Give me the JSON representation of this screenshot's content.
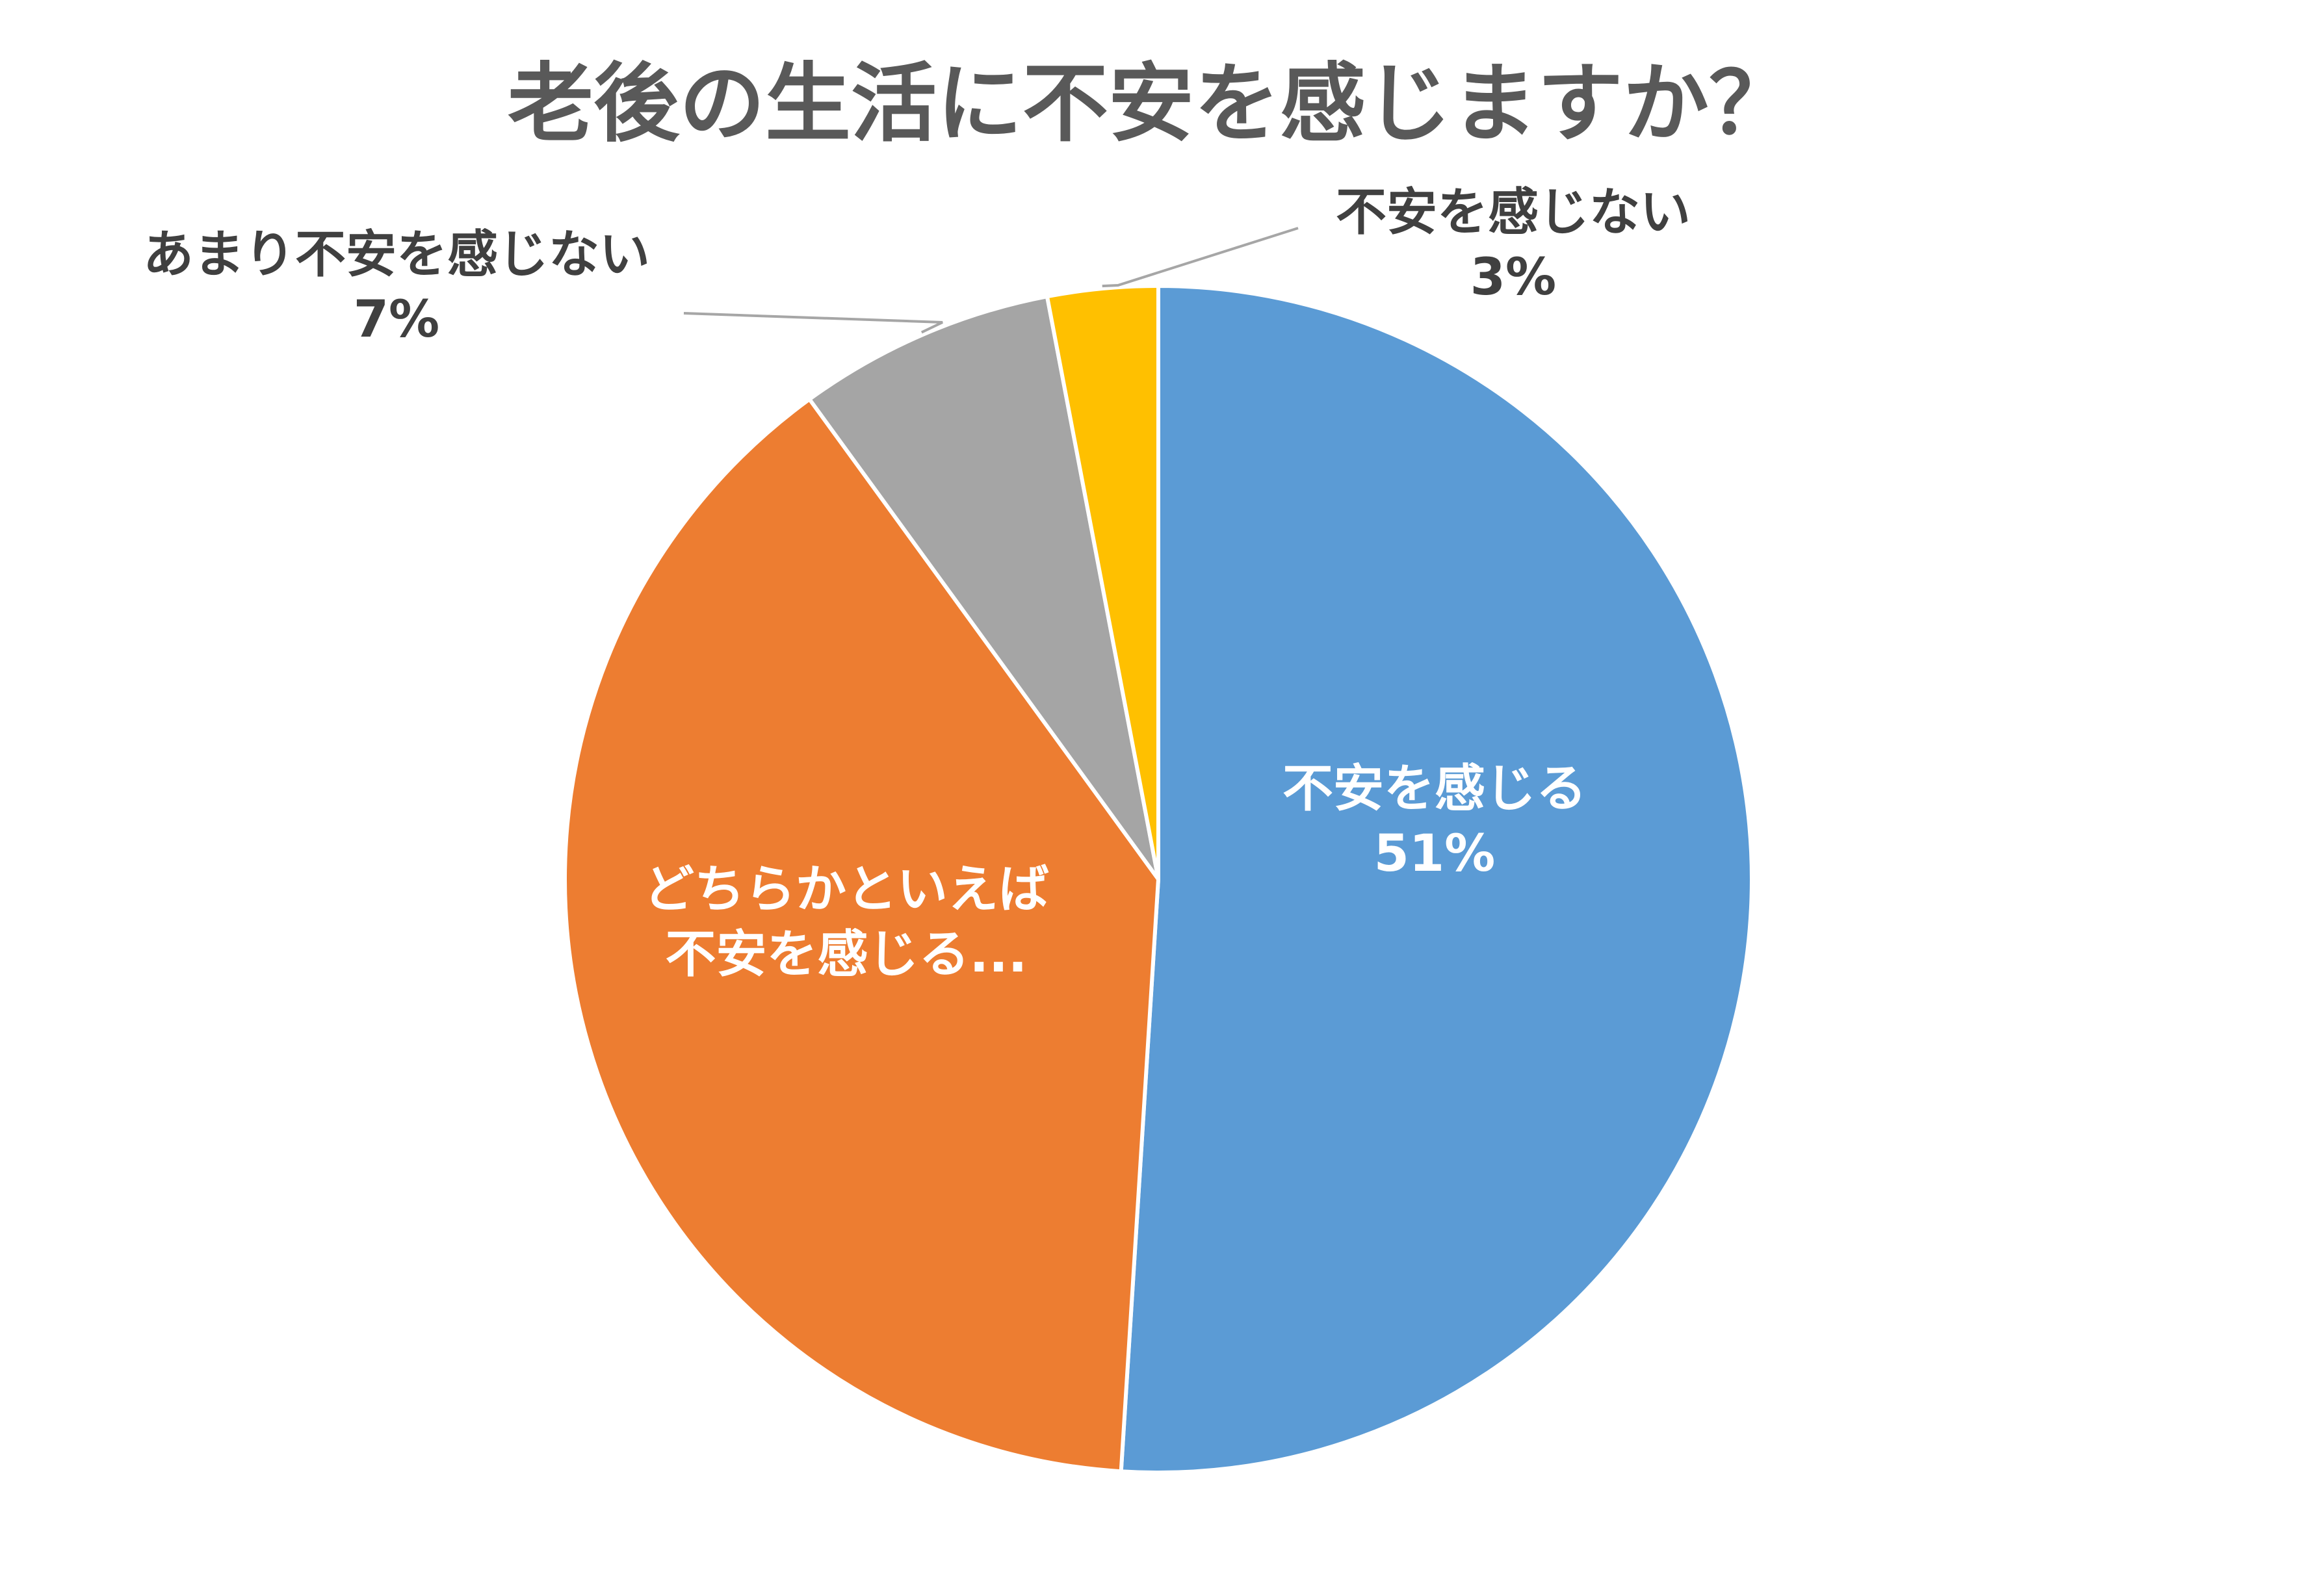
{
  "chart_data": {
    "type": "pie",
    "title": "老後の生活に不安を感じますか？",
    "start_angle_deg": 0,
    "direction": "clockwise",
    "slices": [
      {
        "category": "不安を感じる",
        "category_lines": [
          "不安を感じる"
        ],
        "value": 51,
        "percent_label": "51%",
        "color": "#5B9BD5",
        "label_position": "inside"
      },
      {
        "category": "どちらかといえば不安を感じる",
        "category_lines": [
          "どちらかといえば",
          "不安を感じる..."
        ],
        "value": 39,
        "percent_label": "",
        "color": "#ED7D31",
        "label_position": "inside"
      },
      {
        "category": "あまり不安を感じない",
        "category_lines": [
          "あまり不安を感じない"
        ],
        "value": 7,
        "percent_label": "7%",
        "color": "#A5A5A5",
        "label_position": "outside-top-left"
      },
      {
        "category": "不安を感じない",
        "category_lines": [
          "不安を感じない"
        ],
        "value": 3,
        "percent_label": "3%",
        "color": "#FFC000",
        "label_position": "outside-top-right"
      }
    ],
    "legend": "none",
    "slice_border_color": "#FFFFFF",
    "leader_line_color": "#A6A6A6"
  }
}
